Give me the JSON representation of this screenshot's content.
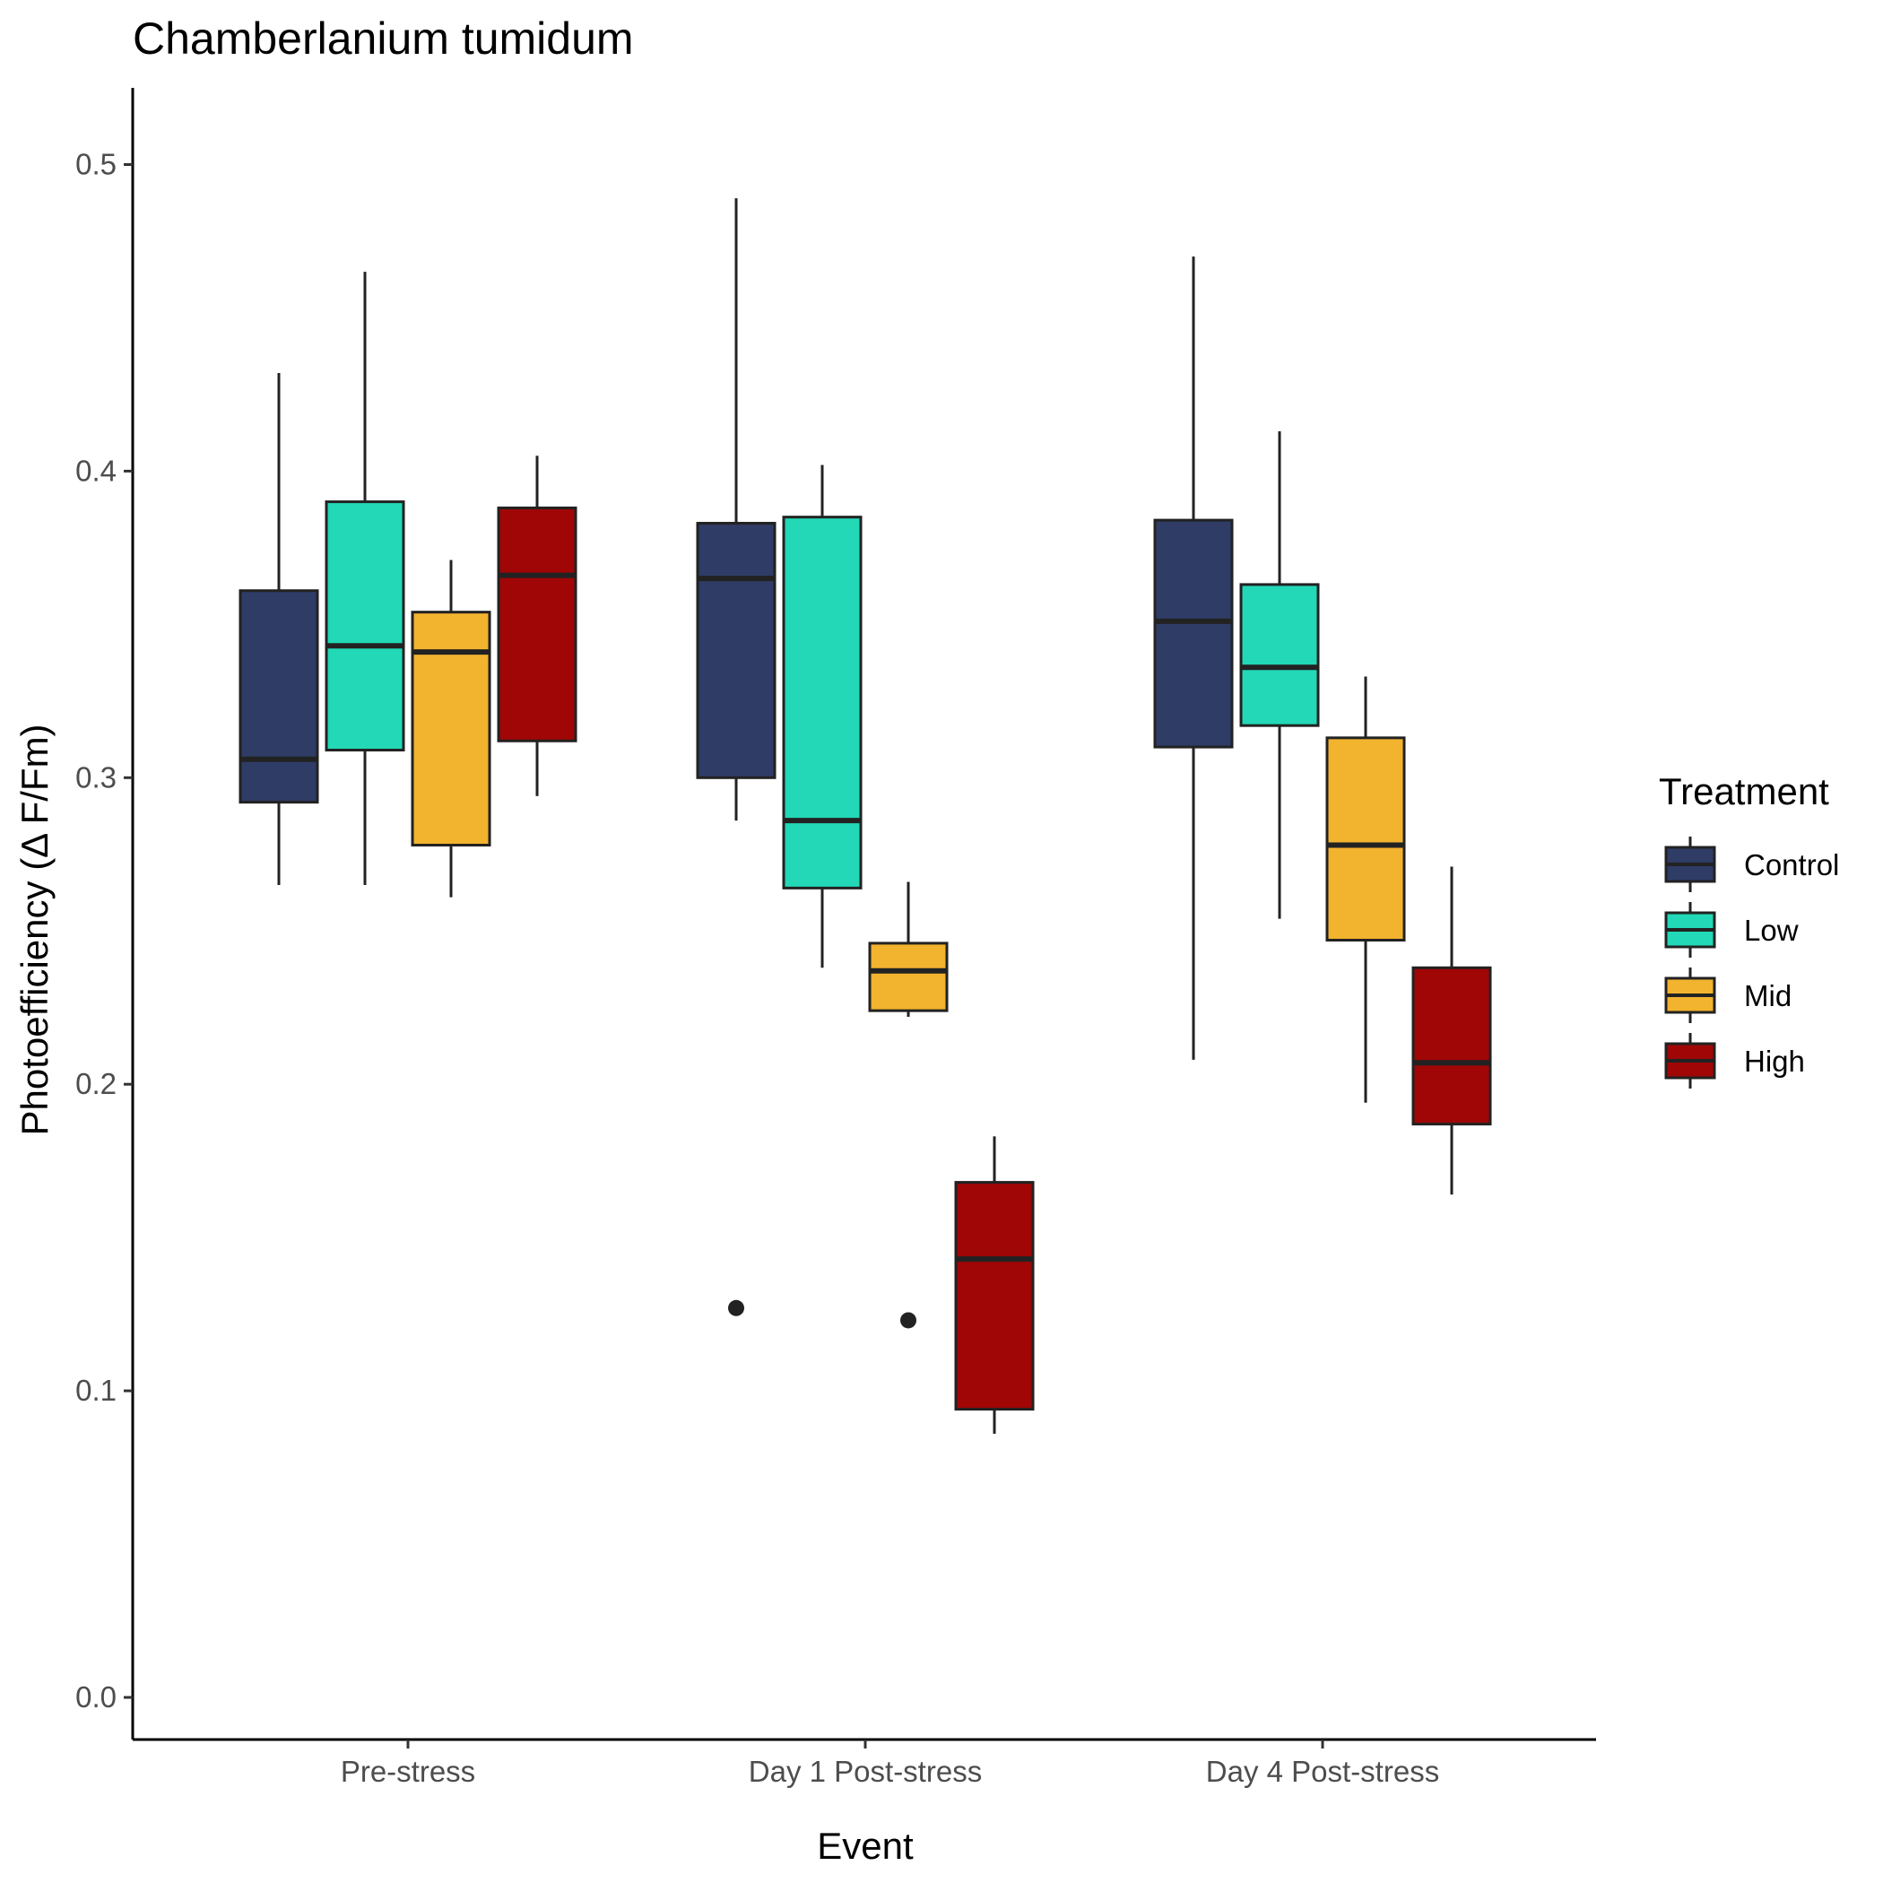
{
  "chart_data": {
    "type": "boxplot",
    "title": "Chamberlanium tumidum",
    "xlabel": "Event",
    "ylabel": "Photoefficiency (Δ F/Fm)",
    "ylim": [
      -0.025,
      0.525
    ],
    "yticks": [
      "0.0",
      "0.1",
      "0.2",
      "0.3",
      "0.4",
      "0.5"
    ],
    "categories": [
      "Pre-stress",
      "Day 1 Post-stress",
      "Day 4 Post-stress"
    ],
    "legend": {
      "title": "Treatment",
      "position": "right"
    },
    "grid": false,
    "series": [
      {
        "name": "Control",
        "color": "#2e3c66",
        "boxes": [
          {
            "min": 0.265,
            "q1": 0.292,
            "median": 0.306,
            "q3": 0.361,
            "max": 0.432,
            "outliers": []
          },
          {
            "min": 0.286,
            "q1": 0.3,
            "median": 0.365,
            "q3": 0.383,
            "max": 0.489,
            "outliers": [
              0.127
            ]
          },
          {
            "min": 0.208,
            "q1": 0.31,
            "median": 0.351,
            "q3": 0.384,
            "max": 0.47,
            "outliers": []
          }
        ]
      },
      {
        "name": "Low",
        "color": "#22d8b6",
        "boxes": [
          {
            "min": 0.265,
            "q1": 0.309,
            "median": 0.343,
            "q3": 0.39,
            "max": 0.465,
            "outliers": []
          },
          {
            "min": 0.238,
            "q1": 0.264,
            "median": 0.286,
            "q3": 0.385,
            "max": 0.402,
            "outliers": []
          },
          {
            "min": 0.254,
            "q1": 0.317,
            "median": 0.336,
            "q3": 0.363,
            "max": 0.413,
            "outliers": []
          }
        ]
      },
      {
        "name": "Mid",
        "color": "#f2b32e",
        "boxes": [
          {
            "min": 0.261,
            "q1": 0.278,
            "median": 0.341,
            "q3": 0.354,
            "max": 0.371,
            "outliers": []
          },
          {
            "min": 0.222,
            "q1": 0.224,
            "median": 0.237,
            "q3": 0.246,
            "max": 0.266,
            "outliers": [
              0.123
            ]
          },
          {
            "min": 0.194,
            "q1": 0.247,
            "median": 0.278,
            "q3": 0.313,
            "max": 0.333,
            "outliers": []
          }
        ]
      },
      {
        "name": "High",
        "color": "#a00606",
        "boxes": [
          {
            "min": 0.294,
            "q1": 0.312,
            "median": 0.366,
            "q3": 0.388,
            "max": 0.405,
            "outliers": []
          },
          {
            "min": 0.086,
            "q1": 0.094,
            "median": 0.143,
            "q3": 0.168,
            "max": 0.183,
            "outliers": []
          },
          {
            "min": 0.164,
            "q1": 0.187,
            "median": 0.207,
            "q3": 0.238,
            "max": 0.271,
            "outliers": []
          }
        ]
      }
    ]
  }
}
